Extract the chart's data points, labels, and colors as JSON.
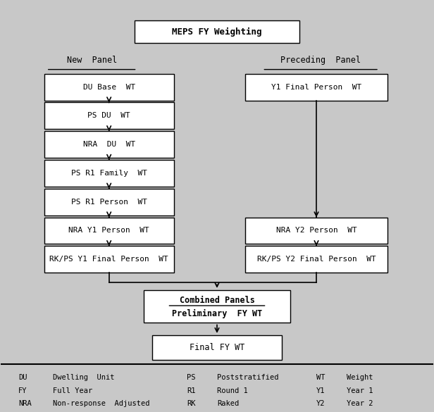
{
  "title": "MEPS FY Weighting",
  "background_color": "#c8c8c8",
  "box_bg": "#ffffff",
  "box_border": "#000000",
  "text_color": "#000000",
  "fig_width": 6.16,
  "fig_height": 5.85,
  "dpi": 100,
  "new_panel_label": "New  Panel",
  "preceding_panel_label": "Preceding  Panel",
  "left_boxes": [
    "DU Base  WT",
    "PS DU  WT",
    "NRA  DU  WT",
    "PS R1 Family  WT",
    "PS R1 Person  WT",
    "NRA Y1 Person  WT",
    "RK/PS Y1 Final Person  WT"
  ],
  "right_boxes": [
    "Y1 Final Person  WT",
    "NRA Y2 Person  WT",
    "RK/PS Y2 Final Person  WT"
  ],
  "combined_box_line1": "Combined Panels",
  "combined_box_line2": "Preliminary  FY WT",
  "final_box": "Final FY WT",
  "legend_rows": [
    [
      "DU",
      "Dwelling  Unit",
      "PS",
      "Poststratified",
      "WT",
      "Weight"
    ],
    [
      "FY",
      "Full Year",
      "R1",
      "Round 1",
      "Y1",
      "Year 1"
    ],
    [
      "NRA",
      "Non-response  Adjusted",
      "RK",
      "Raked",
      "Y2",
      "Year 2"
    ]
  ]
}
